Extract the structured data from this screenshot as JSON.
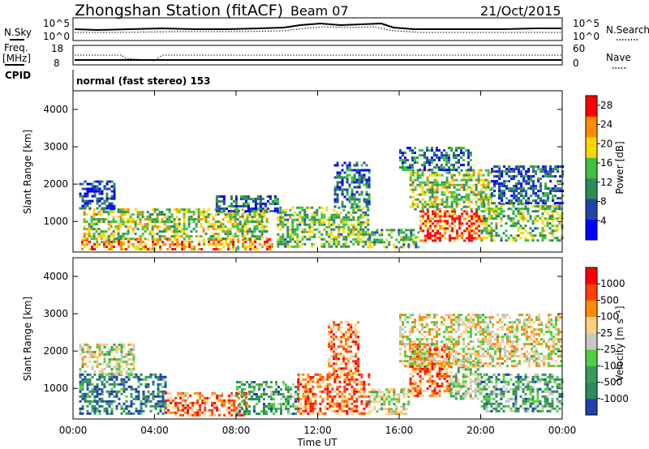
{
  "header": {
    "station": "Zhongshan Station (fitACF)",
    "beam": "Beam 07",
    "date": "21/Oct/2015"
  },
  "nsky_panel": {
    "left_label": "N.Sky",
    "right_label": "N.Search",
    "left_ticks": [
      "10^5",
      "10^0"
    ],
    "right_ticks": [
      "10^5",
      "10^0"
    ]
  },
  "freq_panel": {
    "left_label_1": "Freq.",
    "left_label_2": "[MHz]",
    "left_ticks": [
      "18",
      "8"
    ],
    "right_label": "Nave",
    "right_ticks": [
      "60",
      "0"
    ]
  },
  "cpid": {
    "label": "CPID",
    "value": "normal (fast stereo) 153"
  },
  "chart_data": [
    {
      "type": "heatmap",
      "name": "power",
      "xlabel": "",
      "ylabel": "Slant Range [km]",
      "xlim_hours": [
        0,
        24
      ],
      "ylim_km": [
        180,
        4500
      ],
      "yticks": [
        "4000",
        "3000",
        "2000",
        "1000"
      ],
      "colorbar": {
        "label": "Power [dB]",
        "ticks": [
          "28",
          "24",
          "20",
          "16",
          "12",
          "8",
          "4"
        ],
        "range": [
          0,
          30
        ],
        "colors": [
          "#0000ff",
          "#2244aa",
          "#2e8b57",
          "#40c040",
          "#ffd700",
          "#ff8c00",
          "#ff0000"
        ]
      },
      "regions": [
        {
          "t0": 0.4,
          "t1": 9.8,
          "r0": 250,
          "r1": 550,
          "level": 0.75
        },
        {
          "t0": 0.5,
          "t1": 9.5,
          "r0": 550,
          "r1": 1350,
          "level": 0.55
        },
        {
          "t0": 0.3,
          "t1": 2.0,
          "r0": 1350,
          "r1": 2100,
          "level": 0.2
        },
        {
          "t0": 7.0,
          "t1": 10.0,
          "r0": 1300,
          "r1": 1700,
          "level": 0.25
        },
        {
          "t0": 10.0,
          "t1": 14.5,
          "r0": 300,
          "r1": 1400,
          "level": 0.5
        },
        {
          "t0": 12.8,
          "t1": 14.5,
          "r0": 1400,
          "r1": 2600,
          "level": 0.3
        },
        {
          "t0": 14.5,
          "t1": 17.0,
          "r0": 300,
          "r1": 800,
          "level": 0.45
        },
        {
          "t0": 17.0,
          "t1": 20.0,
          "r0": 500,
          "r1": 1300,
          "level": 0.9
        },
        {
          "t0": 16.5,
          "t1": 20.5,
          "r0": 1300,
          "r1": 2400,
          "level": 0.55
        },
        {
          "t0": 16.0,
          "t1": 19.5,
          "r0": 2400,
          "r1": 3000,
          "level": 0.3
        },
        {
          "t0": 20.0,
          "t1": 24.0,
          "r0": 500,
          "r1": 1500,
          "level": 0.5
        },
        {
          "t0": 20.5,
          "t1": 24.0,
          "r0": 1500,
          "r1": 2500,
          "level": 0.25
        }
      ]
    },
    {
      "type": "heatmap",
      "name": "velocity",
      "xlabel": "Time UT",
      "ylabel": "Slant Range [km]",
      "xlim_hours": [
        0,
        24
      ],
      "ylim_km": [
        180,
        4500
      ],
      "xticks": [
        "00:00",
        "04:00",
        "08:00",
        "12:00",
        "16:00",
        "20:00",
        "00:00"
      ],
      "yticks": [
        "4000",
        "3000",
        "2000",
        "1000"
      ],
      "colorbar": {
        "label": "Velocity [m s⁻¹]",
        "ticks": [
          "1000",
          "500",
          "100",
          "25",
          "-25",
          "-100",
          "-500",
          "-1000"
        ],
        "colors": [
          "#2040b0",
          "#2e8b57",
          "#3a9a5a",
          "#50d040",
          "#c8c8c0",
          "#ffd080",
          "#ff8c00",
          "#ff4000",
          "#ff0000"
        ]
      },
      "regions": [
        {
          "t0": 0.3,
          "t1": 4.5,
          "r0": 300,
          "r1": 1400,
          "level": 0.15
        },
        {
          "t0": 4.5,
          "t1": 8.5,
          "r0": 300,
          "r1": 900,
          "level": 0.75
        },
        {
          "t0": 0.3,
          "t1": 3.0,
          "r0": 1400,
          "r1": 2200,
          "level": 0.5
        },
        {
          "t0": 8.0,
          "t1": 11.0,
          "r0": 300,
          "r1": 1200,
          "level": 0.3
        },
        {
          "t0": 11.0,
          "t1": 14.5,
          "r0": 300,
          "r1": 1400,
          "level": 0.8
        },
        {
          "t0": 12.5,
          "t1": 14.0,
          "r0": 1400,
          "r1": 2800,
          "level": 0.75
        },
        {
          "t0": 14.5,
          "t1": 16.5,
          "r0": 300,
          "r1": 1000,
          "level": 0.5
        },
        {
          "t0": 16.5,
          "t1": 18.5,
          "r0": 800,
          "r1": 2200,
          "level": 0.8
        },
        {
          "t0": 18.5,
          "t1": 20.0,
          "r0": 700,
          "r1": 1800,
          "level": 0.45
        },
        {
          "t0": 20.0,
          "t1": 24.0,
          "r0": 400,
          "r1": 1400,
          "level": 0.3
        },
        {
          "t0": 16.0,
          "t1": 24.0,
          "r0": 1600,
          "r1": 3000,
          "level": 0.55
        }
      ]
    }
  ]
}
